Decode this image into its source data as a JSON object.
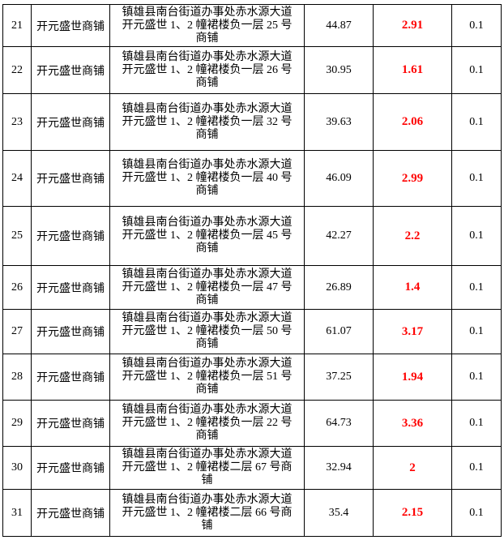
{
  "colors": {
    "highlight_red": "#ff0000",
    "text": "#000000",
    "border": "#000000",
    "background": "#ffffff"
  },
  "table": {
    "rows": [
      {
        "no": "21",
        "name": "开元盛世商铺",
        "address": "镇雄县南台街道办事处赤水源大道开元盛世 1、2 幢裙楼负一层 25 号商铺",
        "area": "44.87",
        "value": "2.91",
        "rate": "0.1"
      },
      {
        "no": "22",
        "name": "开元盛世商铺",
        "address": "镇雄县南台街道办事处赤水源大道开元盛世 1、2 幢裙楼负一层 26 号商铺",
        "area": "30.95",
        "value": "1.61",
        "rate": "0.1"
      },
      {
        "no": "23",
        "name": "开元盛世商铺",
        "address": "镇雄县南台街道办事处赤水源大道开元盛世 1、2 幢裙楼负一层 32 号商铺",
        "area": "39.63",
        "value": "2.06",
        "rate": "0.1"
      },
      {
        "no": "24",
        "name": "开元盛世商铺",
        "address": "镇雄县南台街道办事处赤水源大道开元盛世 1、2 幢裙楼负一层 40 号商铺",
        "area": "46.09",
        "value": "2.99",
        "rate": "0.1"
      },
      {
        "no": "25",
        "name": "开元盛世商铺",
        "address": "镇雄县南台街道办事处赤水源大道开元盛世 1、2 幢裙楼负一层 45 号商铺",
        "area": "42.27",
        "value": "2.2",
        "rate": "0.1"
      },
      {
        "no": "26",
        "name": "开元盛世商铺",
        "address": "镇雄县南台街道办事处赤水源大道开元盛世 1、2 幢裙楼负一层 47 号商铺",
        "area": "26.89",
        "value": "1.4",
        "rate": "0.1"
      },
      {
        "no": "27",
        "name": "开元盛世商铺",
        "address": "镇雄县南台街道办事处赤水源大道开元盛世 1、2 幢裙楼负一层 50 号商铺",
        "area": "61.07",
        "value": "3.17",
        "rate": "0.1"
      },
      {
        "no": "28",
        "name": "开元盛世商铺",
        "address": "镇雄县南台街道办事处赤水源大道开元盛世 1、2 幢裙楼负一层 51 号商铺",
        "area": "37.25",
        "value": "1.94",
        "rate": "0.1"
      },
      {
        "no": "29",
        "name": "开元盛世商铺",
        "address": "镇雄县南台街道办事处赤水源大道开元盛世 1、2 幢裙楼负一层 22 号商铺",
        "area": "64.73",
        "value": "3.36",
        "rate": "0.1"
      },
      {
        "no": "30",
        "name": "开元盛世商铺",
        "address": "镇雄县南台街道办事处赤水源大道开元盛世 1、2 幢裙楼二层 67 号商铺",
        "area": "32.94",
        "value": "2",
        "rate": "0.1"
      },
      {
        "no": "31",
        "name": "开元盛世商铺",
        "address": "镇雄县南台街道办事处赤水源大道开元盛世 1、2 幢裙楼二层 66 号商铺",
        "area": "35.4",
        "value": "2.15",
        "rate": "0.1"
      }
    ]
  }
}
